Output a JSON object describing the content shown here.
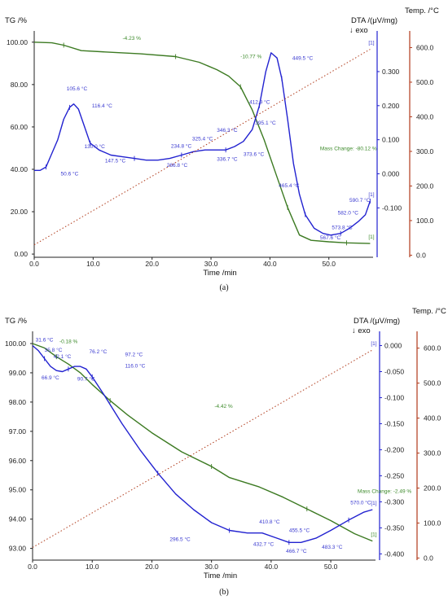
{
  "chart_data": [
    {
      "type": "line",
      "caption": "(a)",
      "xlabel": "Time /min",
      "left_title": "TG /%",
      "dta_title": "DTA /(μV/mg)",
      "exo_label": "↓ exo",
      "temp_title": "Temp. /°C",
      "curve_marker": "[1]",
      "xlim": [
        0,
        57.5
      ],
      "x_ticks": [
        0.0,
        10.0,
        20.0,
        30.0,
        40.0,
        50.0
      ],
      "tg_lim": [
        -1.5,
        103
      ],
      "tg_ticks": [
        0.0,
        20.0,
        40.0,
        60.0,
        80.0,
        100.0
      ],
      "dta_lim": [
        -0.245,
        0.405
      ],
      "dta_ticks": [
        -0.1,
        0.0,
        0.1,
        0.2,
        0.3
      ],
      "temp_lim": [
        -6,
        634
      ],
      "temp_ticks": [
        0.0,
        100.0,
        200.0,
        300.0,
        400.0,
        500.0,
        600.0
      ],
      "series": [
        {
          "axis": "tg",
          "color": "#3c7a22",
          "points": [
            [
              0,
              100
            ],
            [
              3,
              99.7
            ],
            [
              5,
              98.6
            ],
            [
              8,
              96
            ],
            [
              12,
              95.4
            ],
            [
              18,
              94.5
            ],
            [
              24,
              93.2
            ],
            [
              28,
              90.5
            ],
            [
              31,
              87
            ],
            [
              33,
              84
            ],
            [
              35,
              79
            ],
            [
              37,
              68
            ],
            [
              39,
              54
            ],
            [
              41,
              38
            ],
            [
              43,
              22
            ],
            [
              45,
              9
            ],
            [
              47,
              6.5
            ],
            [
              50,
              5.8
            ],
            [
              53,
              5.3
            ],
            [
              57,
              5.0
            ]
          ]
        },
        {
          "axis": "dta",
          "color": "#2222d0",
          "points": [
            [
              0,
              0.01
            ],
            [
              1,
              0.01
            ],
            [
              2,
              0.02
            ],
            [
              3,
              0.06
            ],
            [
              4,
              0.1
            ],
            [
              5,
              0.16
            ],
            [
              6,
              0.195
            ],
            [
              6.7,
              0.205
            ],
            [
              7.5,
              0.19
            ],
            [
              8.5,
              0.14
            ],
            [
              9.5,
              0.09
            ],
            [
              11,
              0.07
            ],
            [
              13,
              0.055
            ],
            [
              15,
              0.05
            ],
            [
              17,
              0.045
            ],
            [
              19,
              0.04
            ],
            [
              21,
              0.04
            ],
            [
              23,
              0.045
            ],
            [
              25,
              0.055
            ],
            [
              27,
              0.065
            ],
            [
              29,
              0.07
            ],
            [
              31,
              0.07
            ],
            [
              32.5,
              0.07
            ],
            [
              34,
              0.08
            ],
            [
              35.5,
              0.095
            ],
            [
              37,
              0.13
            ],
            [
              38.2,
              0.2
            ],
            [
              39.3,
              0.3
            ],
            [
              40.2,
              0.355
            ],
            [
              41.2,
              0.34
            ],
            [
              42,
              0.28
            ],
            [
              43,
              0.16
            ],
            [
              44,
              0.03
            ],
            [
              45,
              -0.06
            ],
            [
              46,
              -0.12
            ],
            [
              47.5,
              -0.16
            ],
            [
              49,
              -0.175
            ],
            [
              50.3,
              -0.18
            ],
            [
              52,
              -0.175
            ],
            [
              53.5,
              -0.16
            ],
            [
              55,
              -0.14
            ],
            [
              56.2,
              -0.12
            ],
            [
              57,
              -0.08
            ]
          ]
        },
        {
          "axis": "temp",
          "color": "#b03a1a",
          "points": [
            [
              0,
              30
            ],
            [
              57,
              595
            ]
          ]
        }
      ],
      "annotations": [
        {
          "text": "-4.23 %",
          "x": 15,
          "axis": "tg",
          "y": 101,
          "kind": "tg"
        },
        {
          "text": "-10.77 %",
          "x": 35,
          "axis": "tg",
          "y": 92.5,
          "kind": "tg"
        },
        {
          "text": "Mass Change: -80.12 %",
          "x": 48.5,
          "axis": "tg",
          "y": 49,
          "kind": "tg"
        },
        {
          "text": "105.6 °C",
          "x": 5.5,
          "axis": "dta",
          "y": 0.245,
          "kind": "dta"
        },
        {
          "text": "116.4 °C",
          "x": 9.8,
          "axis": "dta",
          "y": 0.195,
          "kind": "dta"
        },
        {
          "text": "130.0 °C",
          "x": 8.5,
          "axis": "dta",
          "y": 0.075,
          "kind": "dta"
        },
        {
          "text": "147.5 °C",
          "x": 12,
          "axis": "dta",
          "y": 0.033,
          "kind": "dta"
        },
        {
          "text": "50.6 °C",
          "x": 4.5,
          "axis": "dta",
          "y": -0.005,
          "kind": "dta"
        },
        {
          "text": "234.8 °C",
          "x": 23.2,
          "axis": "dta",
          "y": 0.077,
          "kind": "dta"
        },
        {
          "text": "266.8 °C",
          "x": 22.5,
          "axis": "dta",
          "y": 0.02,
          "kind": "dta"
        },
        {
          "text": "325.4 °C",
          "x": 26.8,
          "axis": "dta",
          "y": 0.098,
          "kind": "dta"
        },
        {
          "text": "346.3 °C",
          "x": 31,
          "axis": "dta",
          "y": 0.123,
          "kind": "dta"
        },
        {
          "text": "336.7 °C",
          "x": 31,
          "axis": "dta",
          "y": 0.038,
          "kind": "dta"
        },
        {
          "text": "373.6 °C",
          "x": 35.5,
          "axis": "dta",
          "y": 0.052,
          "kind": "dta"
        },
        {
          "text": "395.1 °C",
          "x": 37.5,
          "axis": "dta",
          "y": 0.145,
          "kind": "dta"
        },
        {
          "text": "412.9 °C",
          "x": 36.5,
          "axis": "dta",
          "y": 0.205,
          "kind": "dta"
        },
        {
          "text": "449.5 °C",
          "x": 43.8,
          "axis": "dta",
          "y": 0.335,
          "kind": "dta"
        },
        {
          "text": "465.4 °C",
          "x": 41.5,
          "axis": "dta",
          "y": -0.04,
          "kind": "dta"
        },
        {
          "text": "590.7 °C",
          "x": 53.5,
          "axis": "dta",
          "y": -0.082,
          "kind": "dta"
        },
        {
          "text": "582.0 °C",
          "x": 51.5,
          "axis": "dta",
          "y": -0.12,
          "kind": "dta"
        },
        {
          "text": "573.8 °C",
          "x": 50.5,
          "axis": "dta",
          "y": -0.163,
          "kind": "dta"
        },
        {
          "text": "567.6 °C",
          "x": 48.5,
          "axis": "dta",
          "y": -0.193,
          "kind": "dta"
        }
      ]
    },
    {
      "type": "line",
      "caption": "(b)",
      "xlabel": "Time /min",
      "left_title": "TG /%",
      "dta_title": "DTA /(μV/mg)",
      "exo_label": "↓ exo",
      "temp_title": "Temp. /°C",
      "curve_marker": "[1]",
      "xlim": [
        0,
        57.5
      ],
      "x_ticks": [
        0.0,
        10.0,
        20.0,
        30.0,
        40.0,
        50.0
      ],
      "tg_lim": [
        92.6,
        100.25
      ],
      "tg_ticks": [
        93.0,
        94.0,
        95.0,
        96.0,
        97.0,
        98.0,
        99.0,
        100.0
      ],
      "dta_lim": [
        -0.412,
        0.018
      ],
      "dta_ticks": [
        -0.4,
        -0.35,
        -0.3,
        -0.25,
        -0.2,
        -0.15,
        -0.1,
        -0.05,
        0.0
      ],
      "temp_lim": [
        -6,
        634
      ],
      "temp_ticks": [
        0.0,
        100.0,
        200.0,
        300.0,
        400.0,
        500.0,
        600.0
      ],
      "series": [
        {
          "axis": "tg",
          "color": "#3c7a22",
          "points": [
            [
              0,
              100
            ],
            [
              2,
              99.85
            ],
            [
              4,
              99.55
            ],
            [
              6,
              99.3
            ],
            [
              8,
              99.0
            ],
            [
              10,
              98.6
            ],
            [
              13,
              98.05
            ],
            [
              16,
              97.55
            ],
            [
              20,
              96.95
            ],
            [
              25,
              96.3
            ],
            [
              30,
              95.8
            ],
            [
              33,
              95.42
            ],
            [
              38,
              95.1
            ],
            [
              42,
              94.75
            ],
            [
              46,
              94.35
            ],
            [
              50,
              93.95
            ],
            [
              54,
              93.5
            ],
            [
              57,
              93.25
            ]
          ]
        },
        {
          "axis": "dta",
          "color": "#2222d0",
          "points": [
            [
              0,
              0.0
            ],
            [
              1,
              -0.01
            ],
            [
              2,
              -0.025
            ],
            [
              3,
              -0.04
            ],
            [
              4,
              -0.048
            ],
            [
              5,
              -0.05
            ],
            [
              6,
              -0.045
            ],
            [
              7,
              -0.04
            ],
            [
              8,
              -0.04
            ],
            [
              9,
              -0.045
            ],
            [
              10,
              -0.06
            ],
            [
              12,
              -0.095
            ],
            [
              15,
              -0.15
            ],
            [
              18,
              -0.2
            ],
            [
              21,
              -0.245
            ],
            [
              24,
              -0.285
            ],
            [
              27,
              -0.315
            ],
            [
              30,
              -0.34
            ],
            [
              33,
              -0.355
            ],
            [
              36,
              -0.36
            ],
            [
              38.5,
              -0.36
            ],
            [
              41,
              -0.37
            ],
            [
              43,
              -0.378
            ],
            [
              45,
              -0.378
            ],
            [
              47.5,
              -0.37
            ],
            [
              50,
              -0.355
            ],
            [
              53,
              -0.335
            ],
            [
              55.5,
              -0.32
            ],
            [
              57,
              -0.315
            ]
          ]
        },
        {
          "axis": "temp",
          "color": "#b03a1a",
          "points": [
            [
              0,
              30
            ],
            [
              57,
              595
            ]
          ]
        }
      ],
      "annotations": [
        {
          "text": "31.6 °C",
          "x": 0.5,
          "axis": "dta",
          "y": 0.008,
          "kind": "dta"
        },
        {
          "text": "-0.18 %",
          "x": 4.5,
          "axis": "tg",
          "y": 100.02,
          "kind": "tg"
        },
        {
          "text": "35.8 °C",
          "x": 2.0,
          "axis": "dta",
          "y": -0.012,
          "kind": "dta"
        },
        {
          "text": "42.1 °C",
          "x": 3.5,
          "axis": "dta",
          "y": -0.024,
          "kind": "dta"
        },
        {
          "text": "66.9 °C",
          "x": 1.5,
          "axis": "dta",
          "y": -0.065,
          "kind": "dta"
        },
        {
          "text": "76.2 °C",
          "x": 9.5,
          "axis": "dta",
          "y": -0.015,
          "kind": "dta"
        },
        {
          "text": "97.2 °C",
          "x": 15.5,
          "axis": "dta",
          "y": -0.02,
          "kind": "dta"
        },
        {
          "text": "116.0 °C",
          "x": 15.5,
          "axis": "dta",
          "y": -0.042,
          "kind": "dta"
        },
        {
          "text": "90.7 °C",
          "x": 7.5,
          "axis": "dta",
          "y": -0.067,
          "kind": "dta"
        },
        {
          "text": "-4.42 %",
          "x": 30.5,
          "axis": "tg",
          "y": 97.8,
          "kind": "tg"
        },
        {
          "text": "Mass Change: -2.49 %",
          "x": 54.5,
          "axis": "tg",
          "y": 94.9,
          "kind": "tg"
        },
        {
          "text": "570.0 °C",
          "x": 53.3,
          "axis": "dta",
          "y": -0.305,
          "kind": "dta"
        },
        {
          "text": "296.5 °C",
          "x": 23,
          "axis": "dta",
          "y": -0.375,
          "kind": "dta"
        },
        {
          "text": "410.8 °C",
          "x": 38,
          "axis": "dta",
          "y": -0.342,
          "kind": "dta"
        },
        {
          "text": "455.5 °C",
          "x": 43,
          "axis": "dta",
          "y": -0.358,
          "kind": "dta"
        },
        {
          "text": "432.7 °C",
          "x": 37,
          "axis": "dta",
          "y": -0.385,
          "kind": "dta"
        },
        {
          "text": "466.7 °C",
          "x": 42.5,
          "axis": "dta",
          "y": -0.398,
          "kind": "dta"
        },
        {
          "text": "483.3 °C",
          "x": 48.5,
          "axis": "dta",
          "y": -0.39,
          "kind": "dta"
        }
      ]
    }
  ]
}
